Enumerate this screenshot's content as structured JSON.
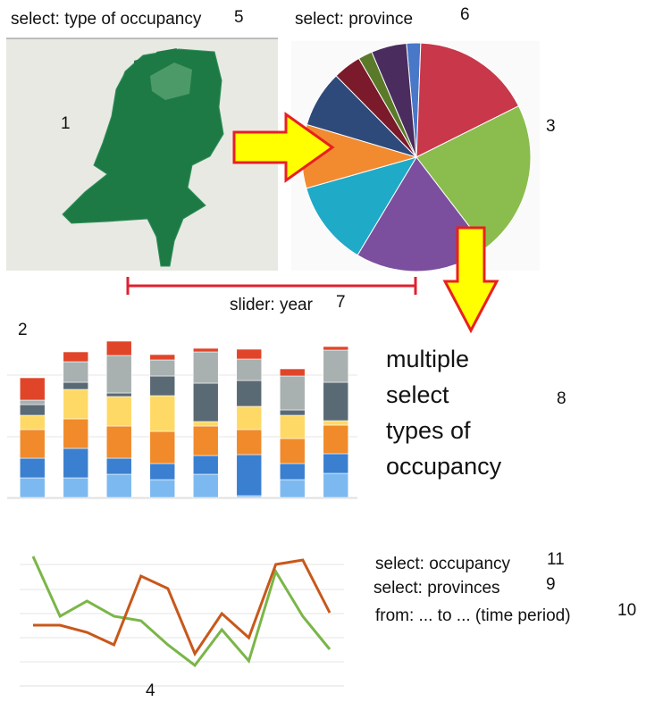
{
  "annotations": {
    "type_of_occupancy": "select: type of occupancy",
    "n5": "5",
    "province": "select: province",
    "n6": "6",
    "n1": "1",
    "n3": "3",
    "slider": "slider: year",
    "n7": "7",
    "n2": "2",
    "multiple": [
      "multiple",
      "select",
      "types of",
      "occupancy"
    ],
    "n8": "8",
    "occupancy": "select: occupancy",
    "n11": "11",
    "provinces": "select: provinces",
    "n9": "9",
    "period": "from: ... to ... (time period)",
    "n10": "10",
    "n4": "4"
  },
  "chart_data": [
    {
      "type": "pie",
      "values": [
        2,
        17,
        22,
        19,
        12,
        9,
        8,
        4,
        2,
        5
      ],
      "colors": [
        "#4a78c8",
        "#c8374a",
        "#8bbd4e",
        "#7b4f9e",
        "#1faac8",
        "#f28a30",
        "#2d4a7a",
        "#7a1a2a",
        "#5a7a2a",
        "#4a2d5e"
      ]
    },
    {
      "type": "stacked_bar",
      "ylim": [
        0,
        180
      ],
      "yticks": [
        0,
        68,
        137
      ],
      "grid": true,
      "series": [
        {
          "color": "#7cb9f0",
          "values": [
            22,
            22,
            26,
            20,
            26,
            2,
            20,
            27
          ]
        },
        {
          "color": "#3a7fd0",
          "values": [
            22,
            33,
            18,
            18,
            21,
            46,
            18,
            22
          ]
        },
        {
          "color": "#f08a2a",
          "values": [
            32,
            33,
            36,
            36,
            33,
            28,
            28,
            32
          ]
        },
        {
          "color": "#ffd966",
          "values": [
            16,
            33,
            33,
            40,
            5,
            26,
            26,
            5
          ]
        },
        {
          "color": "#5a6a74",
          "values": [
            12,
            8,
            4,
            22,
            43,
            29,
            6,
            43
          ]
        },
        {
          "color": "#a8b0b0",
          "values": [
            5,
            23,
            42,
            18,
            35,
            24,
            38,
            36
          ]
        },
        {
          "color": "#e0452a",
          "values": [
            25,
            11,
            16,
            6,
            4,
            11,
            8,
            4
          ]
        }
      ]
    },
    {
      "type": "line",
      "ylim": [
        0,
        165
      ],
      "yticks": [
        0,
        27,
        54,
        81,
        108,
        136
      ],
      "grid": true,
      "series": [
        {
          "color": "#7ab648",
          "values": [
            145,
            78,
            95,
            78,
            73,
            46,
            23,
            63,
            28,
            128,
            78,
            41
          ]
        },
        {
          "color": "#c8581a",
          "values": [
            68,
            68,
            60,
            46,
            123,
            109,
            36,
            81,
            54,
            136,
            141,
            82
          ]
        }
      ]
    }
  ]
}
